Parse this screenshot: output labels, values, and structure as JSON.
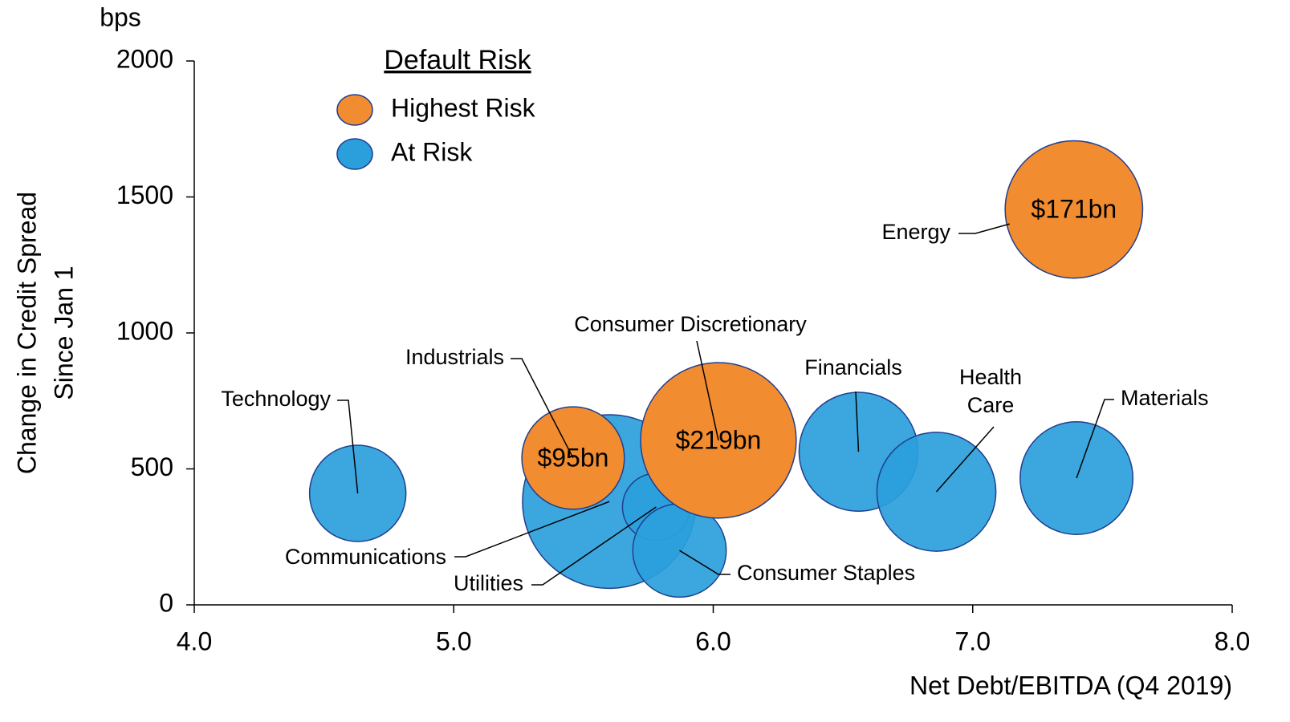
{
  "chart_data": {
    "type": "bubble",
    "unit_label": "bps",
    "ylabel": [
      "Change in Credit Spread",
      "Since Jan 1"
    ],
    "xlabel": "Net Debt/EBITDA (Q4 2019)",
    "legend_title": "Default Risk",
    "legend": "top-left",
    "xlim": [
      4,
      8
    ],
    "xticks": [
      {
        "value": 4,
        "label": "4.0"
      },
      {
        "value": 5,
        "label": "5.0"
      },
      {
        "value": 6,
        "label": "6.0"
      },
      {
        "value": 7,
        "label": "7.0"
      },
      {
        "value": 8,
        "label": "8.0"
      }
    ],
    "ylim": [
      0,
      2000
    ],
    "yticks": [
      0,
      500,
      1000,
      1500,
      2000
    ],
    "series": [
      {
        "name": "At Risk",
        "color": "#2b9fdc",
        "labels": [
          "Technology",
          "Communications",
          "Utilities",
          "Consumer Staples",
          "Financials",
          "Health Care",
          "Materials"
        ],
        "x": [
          4.63,
          5.6,
          5.78,
          5.87,
          6.56,
          6.86,
          7.4
        ],
        "values": [
          410,
          380,
          360,
          200,
          563,
          416,
          466
        ],
        "sizes": [
          84,
          273,
          41,
          79,
          128,
          128,
          115
        ]
      },
      {
        "name": "Highest Risk",
        "color": "#f28c30",
        "labels": [
          "Industrials",
          "Consumer Discretionary",
          "Energy"
        ],
        "x": [
          5.46,
          6.02,
          7.39
        ],
        "values": [
          540,
          605,
          1454
        ],
        "sizes": [
          95,
          219,
          171
        ],
        "value_labels": [
          "$95bn",
          "$219bn",
          "$171bn"
        ]
      }
    ]
  }
}
